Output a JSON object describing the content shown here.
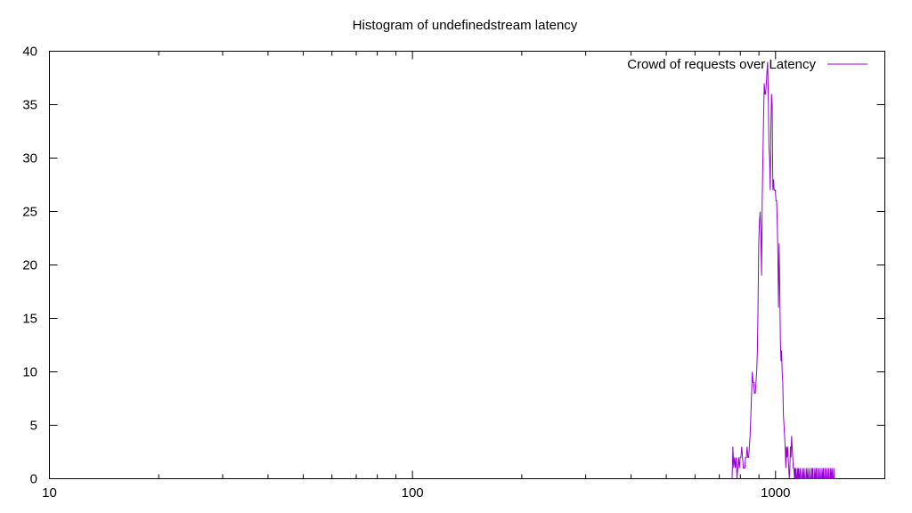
{
  "chart_data": {
    "type": "line",
    "title": "Histogram of undefinedstream latency",
    "xlabel": "",
    "ylabel": "",
    "x_scale": "log",
    "xlim": [
      10,
      2000
    ],
    "ylim": [
      0,
      40
    ],
    "x_ticks": [
      10,
      100,
      1000
    ],
    "y_ticks": [
      0,
      5,
      10,
      15,
      20,
      25,
      30,
      35,
      40
    ],
    "grid": false,
    "legend_position": "top-right",
    "series": [
      {
        "name": "Crowd of requests over Latency",
        "color": "#9400d3",
        "x": [
          759,
          763,
          767,
          771,
          775,
          779,
          783,
          787,
          791,
          795,
          799,
          803,
          807,
          811,
          815,
          819,
          823,
          827,
          831,
          835,
          839,
          843,
          847,
          851,
          855,
          859,
          863,
          867,
          871,
          875,
          879,
          883,
          887,
          891,
          895,
          899,
          903,
          907,
          911,
          915,
          919,
          923,
          927,
          931,
          935,
          939,
          943,
          947,
          951,
          955,
          959,
          963,
          967,
          971,
          975,
          979,
          983,
          987,
          991,
          995,
          999,
          1003,
          1007,
          1011,
          1015,
          1019,
          1023,
          1027,
          1031,
          1035,
          1039,
          1043,
          1047,
          1051,
          1055,
          1059,
          1063,
          1067,
          1071,
          1075,
          1079,
          1083,
          1087,
          1091,
          1095,
          1099,
          1103,
          1107,
          1111,
          1115,
          1119,
          1123,
          1127,
          1131,
          1135,
          1139,
          1143,
          1147,
          1151,
          1155,
          1159,
          1163,
          1167,
          1171,
          1175,
          1179,
          1183,
          1187,
          1191,
          1195,
          1199,
          1203,
          1207,
          1211,
          1215,
          1219,
          1223,
          1227,
          1231,
          1235,
          1239,
          1243,
          1247,
          1251,
          1255,
          1259,
          1263,
          1267,
          1271,
          1275,
          1279,
          1283,
          1287,
          1291,
          1295,
          1299,
          1303,
          1307,
          1311,
          1315,
          1319,
          1323,
          1327,
          1331,
          1335,
          1339,
          1343,
          1347,
          1351,
          1355,
          1359,
          1363,
          1367,
          1371,
          1375,
          1379,
          1383,
          1387,
          1391,
          1395,
          1399,
          1403,
          1407,
          1411,
          1415,
          1419,
          1423,
          1427,
          1431,
          1435,
          1439,
          1443,
          1447,
          1451,
          1455
        ],
        "y": [
          0,
          3,
          1,
          2,
          1,
          2,
          0,
          1,
          2,
          1,
          2,
          2,
          3,
          2,
          1,
          1,
          1,
          2,
          2,
          3,
          2,
          2,
          3,
          4,
          6,
          8,
          10,
          9,
          9,
          8,
          8,
          9,
          10,
          12,
          16,
          22,
          24,
          25,
          23,
          19,
          26,
          30,
          34,
          37,
          36,
          36,
          37,
          38,
          39,
          36,
          31,
          30,
          27,
          33,
          36,
          35,
          27,
          28,
          27,
          27,
          27,
          26,
          26,
          24,
          21,
          16,
          22,
          18,
          13,
          11,
          12,
          10,
          9,
          6,
          5,
          4,
          3,
          1,
          3,
          2,
          3,
          2,
          1,
          0,
          1,
          3,
          2,
          4,
          3,
          2,
          1,
          1,
          0,
          1,
          0,
          1,
          0,
          0,
          1,
          0,
          1,
          0,
          0,
          1,
          0,
          0,
          0,
          1,
          0,
          0,
          1,
          0,
          0,
          0,
          1,
          0,
          0,
          1,
          0,
          0,
          0,
          1,
          0,
          0,
          0,
          1,
          0,
          1,
          0,
          0,
          0,
          1,
          0,
          0,
          1,
          0,
          0,
          0,
          1,
          0,
          0,
          0,
          1,
          0,
          0,
          0,
          1,
          0,
          0,
          1,
          0,
          0,
          0,
          1,
          0,
          0,
          0,
          1,
          0,
          0,
          0,
          1,
          0,
          0,
          0,
          1,
          0,
          0,
          1,
          0,
          0,
          0,
          1,
          0,
          0
        ]
      }
    ]
  }
}
